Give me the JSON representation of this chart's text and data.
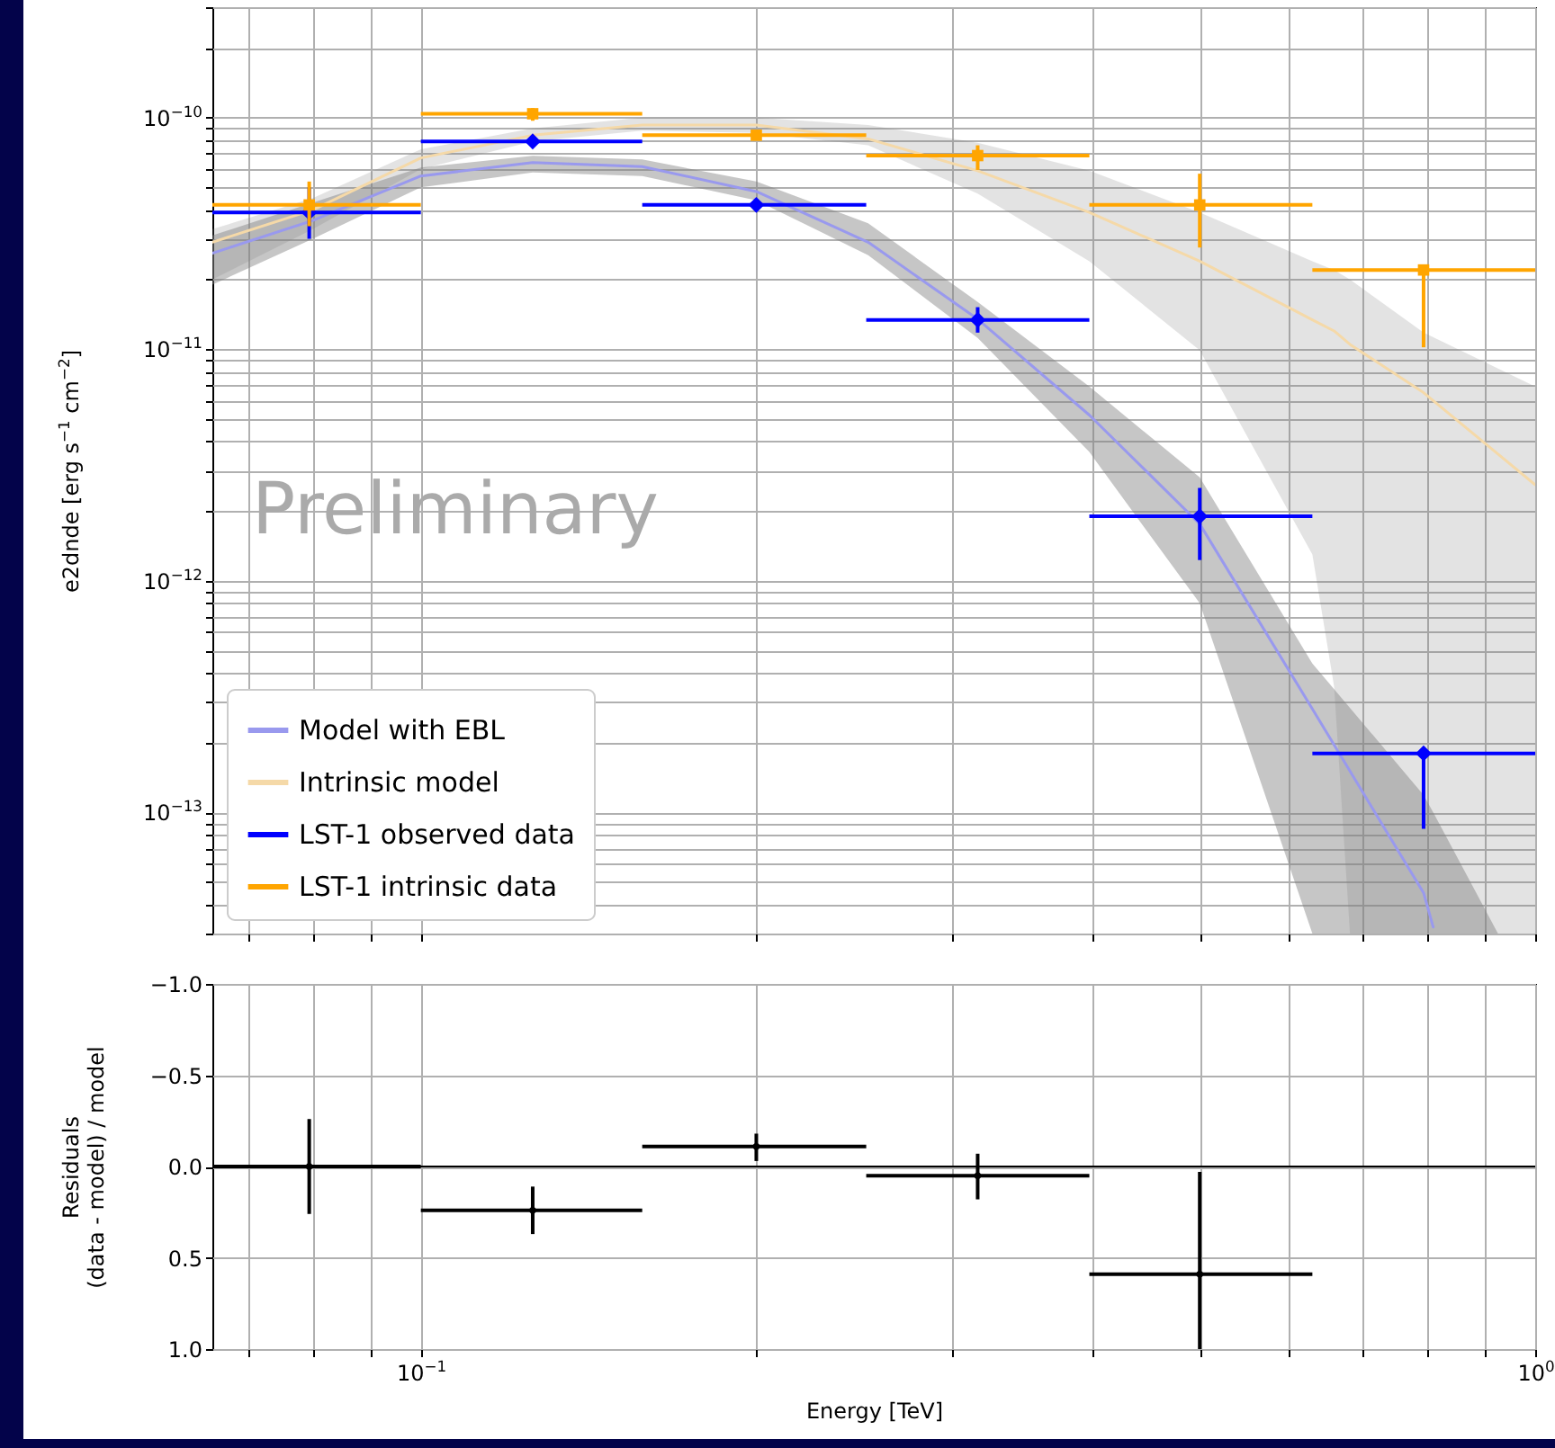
{
  "chart_data": [
    {
      "type": "line",
      "ylabel": "e2dnde [erg s$^{−1}$ cm$^{−2}$]",
      "xlim": [
        0.065,
        1
      ],
      "ylim": [
        3e-14,
        3e-10
      ],
      "log": "xy",
      "grid": true,
      "legend": "bottom left",
      "tick_labels": "y",
      "xticks": [
        {
          "value": 0.07,
          "label": null
        },
        {
          "value": 0.08,
          "label": null
        },
        {
          "value": 0.09,
          "label": null
        },
        {
          "value": 0.1,
          "label": null
        },
        {
          "value": 0.2,
          "label": null
        },
        {
          "value": 0.3,
          "label": null
        },
        {
          "value": 0.4,
          "label": null
        },
        {
          "value": 0.5,
          "label": null
        },
        {
          "value": 0.6,
          "label": null
        },
        {
          "value": 0.7,
          "label": null
        },
        {
          "value": 0.8,
          "label": null
        },
        {
          "value": 0.9,
          "label": null
        },
        {
          "value": 1,
          "label": null
        }
      ],
      "yticks": [
        {
          "value": 3e-14,
          "label": null
        },
        {
          "value": 4e-14,
          "label": null
        },
        {
          "value": 5e-14,
          "label": null
        },
        {
          "value": 6e-14,
          "label": null
        },
        {
          "value": 7e-14,
          "label": null
        },
        {
          "value": 8e-14,
          "label": null
        },
        {
          "value": 9e-14,
          "label": null
        },
        {
          "value": 1e-13,
          "label": "10$^{−13}$"
        },
        {
          "value": 2e-13,
          "label": null
        },
        {
          "value": 3e-13,
          "label": null
        },
        {
          "value": 4e-13,
          "label": null
        },
        {
          "value": 5e-13,
          "label": null
        },
        {
          "value": 6e-13,
          "label": null
        },
        {
          "value": 7e-13,
          "label": null
        },
        {
          "value": 8e-13,
          "label": null
        },
        {
          "value": 9e-13,
          "label": null
        },
        {
          "value": 1e-12,
          "label": "10$^{−12}$"
        },
        {
          "value": 2e-12,
          "label": null
        },
        {
          "value": 3e-12,
          "label": null
        },
        {
          "value": 4e-12,
          "label": null
        },
        {
          "value": 5e-12,
          "label": null
        },
        {
          "value": 6e-12,
          "label": null
        },
        {
          "value": 7e-12,
          "label": null
        },
        {
          "value": 8e-12,
          "label": null
        },
        {
          "value": 9e-12,
          "label": null
        },
        {
          "value": 1e-11,
          "label": "10$^{−11}$"
        },
        {
          "value": 2e-11,
          "label": null
        },
        {
          "value": 3e-11,
          "label": null
        },
        {
          "value": 4e-11,
          "label": null
        },
        {
          "value": 5e-11,
          "label": null
        },
        {
          "value": 6e-11,
          "label": null
        },
        {
          "value": 7e-11,
          "label": null
        },
        {
          "value": 8e-11,
          "label": null
        },
        {
          "value": 9e-11,
          "label": null
        },
        {
          "value": 1e-10,
          "label": "10$^{−10}$"
        },
        {
          "value": 2e-10,
          "label": null
        },
        {
          "value": 3e-10,
          "label": null
        }
      ],
      "annotations": [
        "Preliminary"
      ],
      "series": [
        {
          "name": "Model with EBL",
          "color": "#9999ee",
          "x": [
            0.065,
            0.08,
            0.1,
            0.126,
            0.158,
            0.2,
            0.252,
            0.316,
            0.398,
            0.5,
            0.631,
            0.794,
            0.81,
            0.926
          ],
          "values": [
            2.6e-11,
            3.6e-11,
            5.6e-11,
            6.4e-11,
            6.15e-11,
            4.8e-11,
            2.9e-11,
            1.35e-11,
            5.2e-12,
            1.76e-12,
            2.8e-13,
            4.5e-14,
            3.2e-14,
            null
          ],
          "lower": [
            1.9e-11,
            3e-11,
            5e-11,
            5.8e-11,
            5.6e-11,
            4.4e-11,
            2.55e-11,
            1.12e-11,
            3.6e-12,
            8e-13,
            3e-14,
            3e-14,
            3e-14,
            3e-14
          ],
          "upper": [
            3.1e-11,
            4.3e-11,
            6.1e-11,
            6.85e-11,
            6.6e-11,
            5.3e-11,
            3.5e-11,
            1.6e-11,
            6.9e-12,
            2.8e-12,
            4.4e-13,
            1.19e-13,
            1e-13,
            3e-14
          ]
        },
        {
          "name": "Intrinsic model",
          "color": "#f5d9a8",
          "x": [
            0.065,
            0.08,
            0.1,
            0.126,
            0.158,
            0.2,
            0.252,
            0.316,
            0.398,
            0.5,
            0.631,
            0.66,
            0.682,
            0.794,
            1.0
          ],
          "values": [
            2.9e-11,
            4e-11,
            6.7e-11,
            8.4e-11,
            9.3e-11,
            9.3e-11,
            8.1e-11,
            5.9e-11,
            3.9e-11,
            2.4e-11,
            1.34e-11,
            1.2e-11,
            1.05e-11,
            6.5e-12,
            2.6e-12
          ],
          "lower": [
            2e-11,
            3.3e-11,
            6e-11,
            7.9e-11,
            8.8e-11,
            8.6e-11,
            7.6e-11,
            4.7e-11,
            2.4e-11,
            9.9e-12,
            1.3e-12,
            3.5e-13,
            3e-14,
            3e-14,
            3e-14
          ],
          "upper": [
            3.3e-11,
            4.5e-11,
            7.3e-11,
            9e-11,
            1e-10,
            1e-10,
            9.3e-11,
            7.8e-11,
            5.9e-11,
            3.9e-11,
            2.4e-11,
            2.2e-11,
            2e-11,
            1.18e-11,
            6.9e-12
          ]
        },
        {
          "name": "LST-1 observed data",
          "type": "scatter",
          "marker": "diamond",
          "color": "#0000ff",
          "x": [
            0.0794,
            0.126,
            0.2,
            0.316,
            0.5,
            0.794
          ],
          "values": [
            3.9e-11,
            7.9e-11,
            4.2e-11,
            1.34e-11,
            1.9e-12,
            1.8e-13
          ],
          "errors": [
            [
              3e-11,
              5e-11
            ],
            [
              7.6e-11,
              8.2e-11
            ],
            [
              4e-11,
              4.4e-11
            ],
            [
              1.18e-11,
              1.52e-11
            ],
            [
              1.23e-12,
              2.52e-12
            ],
            [
              8.5e-14,
              1.8e-13
            ]
          ],
          "xerrors": [
            [
              0.065,
              0.1
            ],
            [
              0.1,
              0.158
            ],
            [
              0.158,
              0.251
            ],
            [
              0.251,
              0.398
            ],
            [
              0.398,
              0.631
            ],
            [
              0.631,
              1.0
            ]
          ]
        },
        {
          "name": "LST-1 intrinsic data",
          "type": "scatter",
          "marker": "square",
          "color": "#ffa500",
          "x": [
            0.0794,
            0.126,
            0.2,
            0.316,
            0.5,
            0.794
          ],
          "values": [
            4.2e-11,
            1.04e-10,
            8.4e-11,
            6.86e-11,
            4.2e-11,
            2.2e-11
          ],
          "errors": [
            [
              3.4e-11,
              5.3e-11
            ],
            [
              9.7e-11,
              1.1e-10
            ],
            [
              8e-11,
              8.8e-11
            ],
            [
              5.95e-11,
              7.6e-11
            ],
            [
              2.75e-11,
              5.73e-11
            ],
            [
              1.02e-11,
              2.2e-11
            ]
          ],
          "xerrors": [
            [
              0.065,
              0.1
            ],
            [
              0.1,
              0.158
            ],
            [
              0.158,
              0.251
            ],
            [
              0.251,
              0.398
            ],
            [
              0.398,
              0.631
            ],
            [
              0.631,
              1.0
            ]
          ]
        }
      ]
    },
    {
      "type": "scatter",
      "xlabel": "Energy [TeV]",
      "ylabel": "Residuals\n(data - model) / model",
      "xlim": [
        0.065,
        1
      ],
      "ylim": [
        1.0,
        -1.0
      ],
      "log": "x",
      "grid": true,
      "marker": "circle",
      "xticks": [
        {
          "value": 0.07,
          "label": null
        },
        {
          "value": 0.08,
          "label": null
        },
        {
          "value": 0.09,
          "label": null
        },
        {
          "value": 0.1,
          "label": "10$^{−1}$"
        },
        {
          "value": 0.2,
          "label": null
        },
        {
          "value": 0.3,
          "label": null
        },
        {
          "value": 0.4,
          "label": null
        },
        {
          "value": 0.5,
          "label": null
        },
        {
          "value": 0.6,
          "label": null
        },
        {
          "value": 0.7,
          "label": null
        },
        {
          "value": 0.8,
          "label": null
        },
        {
          "value": 0.9,
          "label": null
        },
        {
          "value": 1,
          "label": "10$^{0}$"
        }
      ],
      "yticks": [
        {
          "value": -1.0,
          "label": "−1.0"
        },
        {
          "value": -0.5,
          "label": "−0.5"
        },
        {
          "value": 0,
          "label": "0.0"
        },
        {
          "value": 0.5,
          "label": "0.5"
        },
        {
          "value": 1.0,
          "label": "1.0"
        }
      ],
      "ref_lines": [
        {
          "axis": "y",
          "value": 0,
          "color": "#000000"
        }
      ],
      "series": [
        {
          "color": "#000000",
          "x": [
            0.0794,
            0.126,
            0.2,
            0.316,
            0.5
          ],
          "values": [
            0.0,
            0.24,
            -0.11,
            0.05,
            0.59
          ],
          "errors": [
            [
              -0.26,
              0.26
            ],
            [
              0.11,
              0.37
            ],
            [
              -0.18,
              -0.03
            ],
            [
              -0.07,
              0.18
            ],
            [
              0.03,
              1.0
            ]
          ],
          "xerrors": [
            [
              0.065,
              0.1
            ],
            [
              0.1,
              0.158
            ],
            [
              0.158,
              0.251
            ],
            [
              0.251,
              0.398
            ],
            [
              0.398,
              0.631
            ]
          ]
        }
      ]
    }
  ]
}
